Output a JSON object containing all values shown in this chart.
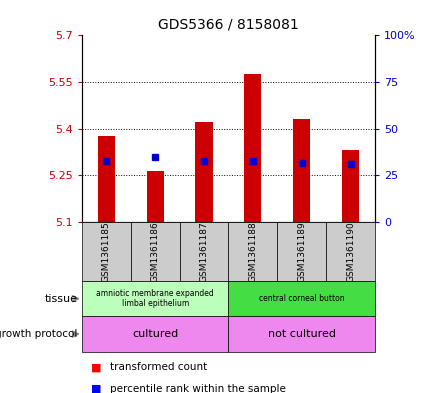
{
  "title": "GDS5366 / 8158081",
  "samples": [
    "GSM1361185",
    "GSM1361186",
    "GSM1361187",
    "GSM1361188",
    "GSM1361189",
    "GSM1361190"
  ],
  "red_values": [
    5.375,
    5.265,
    5.42,
    5.575,
    5.43,
    5.33
  ],
  "blue_values": [
    5.295,
    5.31,
    5.295,
    5.295,
    5.29,
    5.285
  ],
  "y_min": 5.1,
  "y_max": 5.7,
  "y_ticks": [
    5.1,
    5.25,
    5.4,
    5.55,
    5.7
  ],
  "y_tick_labels": [
    "5.1",
    "5.25",
    "5.4",
    "5.55",
    "5.7"
  ],
  "y2_ticks": [
    0,
    25,
    50,
    75,
    100
  ],
  "y2_tick_labels": [
    "0",
    "25",
    "50",
    "75",
    "100%"
  ],
  "left_color": "#cc0000",
  "right_color": "#0000cc",
  "bar_color": "#cc0000",
  "blue_marker_color": "#0000cc",
  "tissue_groups": [
    {
      "label": "amniotic membrane expanded\nlimbal epithelium",
      "samples": [
        0,
        1,
        2
      ],
      "color": "#bbffbb"
    },
    {
      "label": "central corneal button",
      "samples": [
        3,
        4,
        5
      ],
      "color": "#44dd44"
    }
  ],
  "tissue_label": "tissue",
  "protocol_label": "growth protocol",
  "protocol_groups": [
    {
      "label": "cultured",
      "samples": [
        0,
        1,
        2
      ],
      "color": "#ee88ee"
    },
    {
      "label": "not cultured",
      "samples": [
        3,
        4,
        5
      ],
      "color": "#ee88ee"
    }
  ],
  "legend_red": "transformed count",
  "legend_blue": "percentile rank within the sample",
  "bg_color": "#ffffff",
  "plot_bg": "#ffffff",
  "bar_width": 0.35,
  "sample_bg": "#cccccc"
}
